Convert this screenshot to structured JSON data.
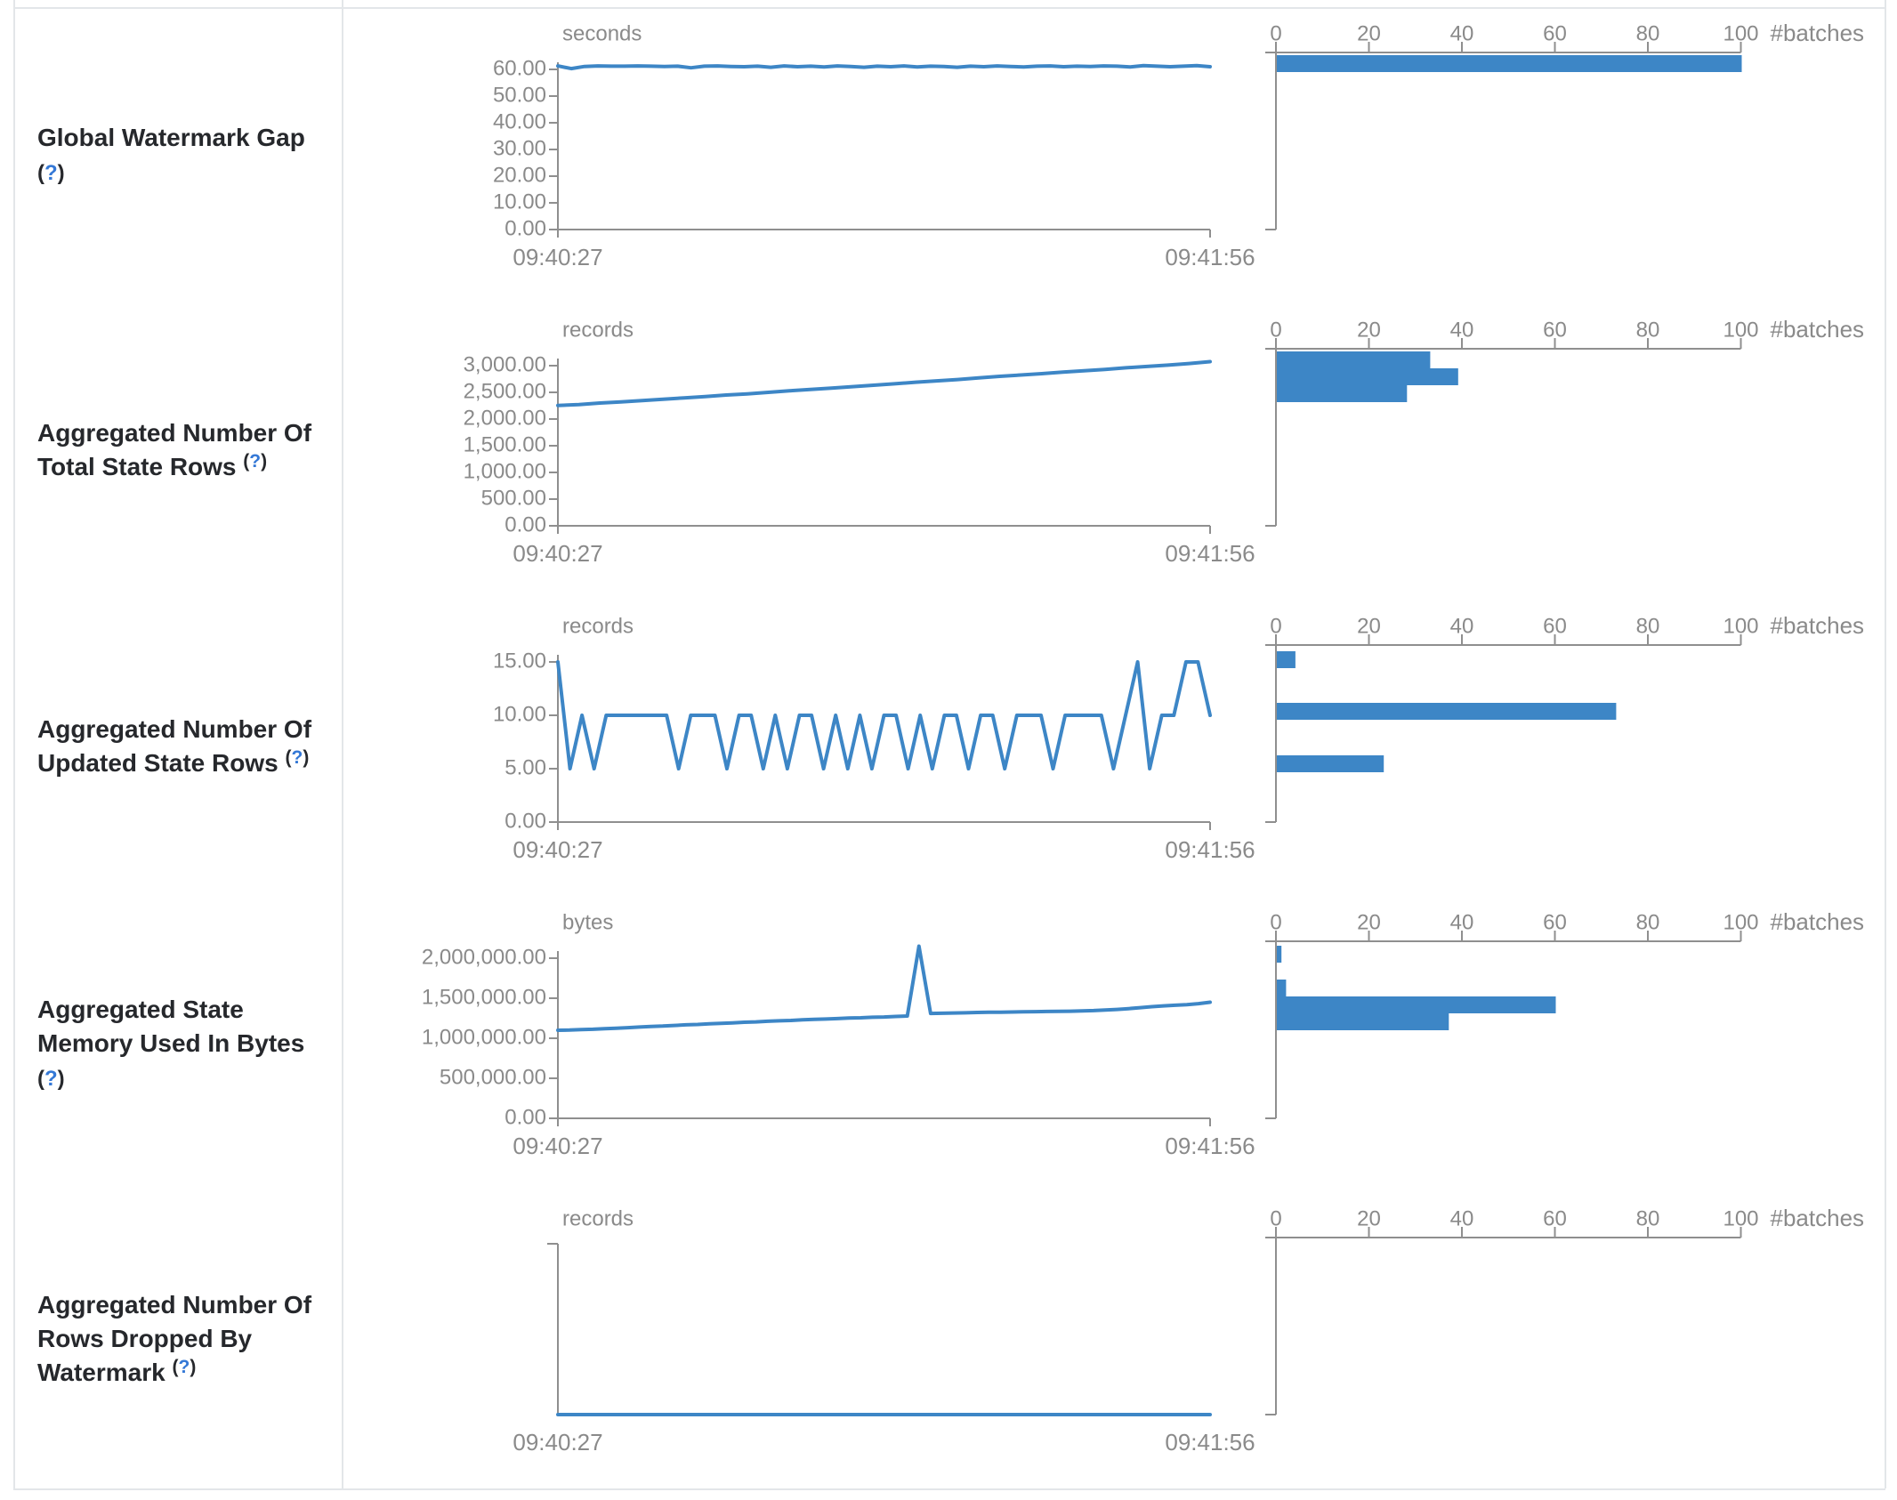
{
  "x_axis": {
    "start": "09:40:27",
    "end": "09:41:56"
  },
  "histogram_axis": {
    "ticks": [
      "0",
      "20",
      "40",
      "60",
      "80",
      "100"
    ],
    "label": "#batches"
  },
  "colors": {
    "series_blue": "#3d86c6",
    "axis_gray": "#8f8f8f",
    "text_gray": "#8a8a8a",
    "row_label": "#26282c",
    "help_blue": "#3478d6",
    "border": "#e3e6e9"
  },
  "rows": [
    {
      "id": "global-watermark-gap",
      "type": "line+histogram",
      "label_lines": [
        [
          {
            "t": "Global Watermark Gap",
            "k": "text"
          }
        ],
        [
          {
            "t": "(",
            "k": "paren"
          },
          {
            "t": "?",
            "k": "q"
          },
          {
            "t": ")",
            "k": "paren"
          }
        ]
      ],
      "unit": "seconds",
      "y_ticks": [
        "60.00",
        "50.00",
        "40.00",
        "30.00",
        "20.00",
        "10.00",
        "0.00"
      ],
      "y_max": 60,
      "line_values": [
        61.3,
        60.3,
        61.1,
        61.3,
        61.2,
        61.2,
        61.3,
        61.2,
        61.1,
        61.2,
        60.6,
        61.2,
        61.3,
        61.1,
        61.0,
        61.2,
        60.8,
        61.3,
        61.0,
        61.2,
        60.9,
        61.3,
        61.1,
        60.8,
        61.2,
        61.0,
        61.3,
        60.9,
        61.2,
        61.1,
        60.8,
        61.2,
        61.0,
        61.3,
        61.1,
        60.9,
        61.2,
        61.3,
        61.0,
        61.2,
        61.1,
        61.3,
        61.2,
        60.9,
        61.4,
        61.2,
        61.0,
        61.2,
        61.4,
        61.0
      ],
      "hist_bars": [
        {
          "count": 100,
          "y_offset": 54
        }
      ]
    },
    {
      "id": "aggregated-total-state-rows",
      "type": "line+histogram",
      "label_lines": [
        [
          {
            "t": "Aggregated Number Of",
            "k": "text"
          }
        ],
        [
          {
            "t": "Total State Rows ",
            "k": "text"
          },
          {
            "t": "(",
            "k": "paren",
            "sup": true
          },
          {
            "t": "?",
            "k": "q",
            "sup": true
          },
          {
            "t": ")",
            "k": "paren",
            "sup": true
          }
        ]
      ],
      "unit": "records",
      "y_ticks": [
        "3,000.00",
        "2,500.00",
        "2,000.00",
        "1,500.00",
        "1,000.00",
        "500.00",
        "0.00"
      ],
      "y_max": 3000,
      "line_values": [
        2255,
        2272,
        2300,
        2322,
        2345,
        2370,
        2396,
        2420,
        2450,
        2472,
        2500,
        2528,
        2555,
        2580,
        2606,
        2634,
        2660,
        2690,
        2715,
        2740,
        2770,
        2800,
        2825,
        2850,
        2880,
        2905,
        2930,
        2960,
        2985,
        3010,
        3040,
        3075
      ],
      "hist_bars": [
        {
          "count": 33,
          "y_offset": 54
        },
        {
          "count": 39,
          "y_offset": 73
        },
        {
          "count": 28,
          "y_offset": 92
        }
      ]
    },
    {
      "id": "aggregated-updated-state-rows",
      "type": "line+histogram",
      "label_lines": [
        [
          {
            "t": "Aggregated Number Of",
            "k": "text"
          }
        ],
        [
          {
            "t": "Updated State Rows ",
            "k": "text"
          },
          {
            "t": "(",
            "k": "paren",
            "sup": true
          },
          {
            "t": "?",
            "k": "q",
            "sup": true
          },
          {
            "t": ")",
            "k": "paren",
            "sup": true
          }
        ]
      ],
      "unit": "records",
      "y_ticks": [
        "15.00",
        "10.00",
        "5.00",
        "0.00"
      ],
      "y_max": 15,
      "line_values": [
        15,
        5,
        10,
        5,
        10,
        10,
        10,
        10,
        10,
        10,
        5,
        10,
        10,
        10,
        5,
        10,
        10,
        5,
        10,
        5,
        10,
        10,
        5,
        10,
        5,
        10,
        5,
        10,
        10,
        5,
        10,
        5,
        10,
        10,
        5,
        10,
        10,
        5,
        10,
        10,
        10,
        5,
        10,
        10,
        10,
        10,
        5,
        10,
        15,
        5,
        10,
        10,
        15,
        15,
        10
      ],
      "hist_bars": [
        {
          "count": 4,
          "y_offset": 58
        },
        {
          "count": 73,
          "y_offset": 116
        },
        {
          "count": 23,
          "y_offset": 175
        }
      ]
    },
    {
      "id": "aggregated-state-memory-used",
      "type": "line+histogram",
      "label_lines": [
        [
          {
            "t": "Aggregated State",
            "k": "text"
          }
        ],
        [
          {
            "t": "Memory Used In Bytes",
            "k": "text"
          }
        ],
        [
          {
            "t": "(",
            "k": "paren"
          },
          {
            "t": "?",
            "k": "q"
          },
          {
            "t": ")",
            "k": "paren"
          }
        ]
      ],
      "unit": "bytes",
      "y_ticks": [
        "2,000,000.00",
        "1,500,000.00",
        "1,000,000.00",
        "500,000.00",
        "0.00"
      ],
      "y_max": 2000000,
      "line_values": [
        1100000,
        1102000,
        1108000,
        1112000,
        1120000,
        1126000,
        1132000,
        1140000,
        1148000,
        1152000,
        1160000,
        1168000,
        1172000,
        1180000,
        1186000,
        1192000,
        1200000,
        1204000,
        1212000,
        1218000,
        1222000,
        1230000,
        1236000,
        1240000,
        1246000,
        1252000,
        1256000,
        1262000,
        1266000,
        1272000,
        1278000,
        2150000,
        1310000,
        1312000,
        1316000,
        1318000,
        1322000,
        1324000,
        1326000,
        1328000,
        1330000,
        1332000,
        1334000,
        1336000,
        1338000,
        1342000,
        1346000,
        1352000,
        1360000,
        1370000,
        1382000,
        1394000,
        1404000,
        1412000,
        1420000,
        1432000,
        1450000
      ],
      "hist_bars": [
        {
          "count": 1,
          "y_offset": 56
        },
        {
          "count": 2,
          "y_offset": 94
        },
        {
          "count": 60,
          "y_offset": 113
        },
        {
          "count": 37,
          "y_offset": 132
        }
      ]
    },
    {
      "id": "aggregated-rows-dropped-by-watermark",
      "type": "line+histogram",
      "label_lines": [
        [
          {
            "t": "Aggregated Number Of",
            "k": "text"
          }
        ],
        [
          {
            "t": "Rows Dropped By",
            "k": "text"
          }
        ],
        [
          {
            "t": "Watermark ",
            "k": "text"
          },
          {
            "t": "(",
            "k": "paren",
            "sup": true
          },
          {
            "t": "?",
            "k": "q",
            "sup": true
          },
          {
            "t": ")",
            "k": "paren",
            "sup": true
          }
        ]
      ],
      "unit": "records",
      "y_ticks": [],
      "y_max": 1,
      "line_values": [
        0,
        0
      ],
      "hist_bars": []
    }
  ]
}
